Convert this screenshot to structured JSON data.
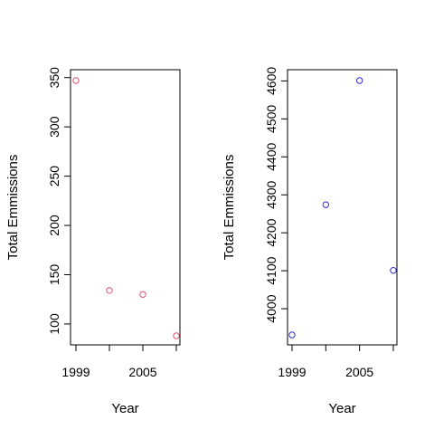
{
  "chart_data": [
    {
      "type": "scatter",
      "title": "",
      "xlabel": "Year",
      "ylabel": "Total Emmissions",
      "x": [
        1999,
        2002,
        2005,
        2008
      ],
      "y": [
        347,
        134,
        130,
        88
      ],
      "xlim": [
        1999,
        2008
      ],
      "ylim": [
        88,
        347
      ],
      "x_ticks": [
        1999,
        2002,
        2005,
        2008
      ],
      "x_tick_labels": [
        "1999",
        "",
        "2005",
        ""
      ],
      "y_ticks": [
        100,
        150,
        200,
        250,
        300,
        350
      ],
      "y_tick_labels": [
        "100",
        "150",
        "200",
        "250",
        "300",
        "350"
      ],
      "grid": false,
      "marker": "open-circle",
      "color": "#df536b"
    },
    {
      "type": "scatter",
      "title": "",
      "xlabel": "Year",
      "ylabel": "Total Emmissions",
      "x": [
        1999,
        2002,
        2005,
        2008
      ],
      "y": [
        3931,
        4274,
        4601,
        4101
      ],
      "xlim": [
        1999,
        2008
      ],
      "ylim": [
        3931,
        4601
      ],
      "x_ticks": [
        1999,
        2002,
        2005,
        2008
      ],
      "x_tick_labels": [
        "1999",
        "",
        "2005",
        ""
      ],
      "y_ticks": [
        4000,
        4100,
        4200,
        4300,
        4400,
        4500,
        4600
      ],
      "y_tick_labels": [
        "4000",
        "4100",
        "4200",
        "4300",
        "4400",
        "4500",
        "4600"
      ],
      "grid": false,
      "marker": "open-circle",
      "color": "#2b2bd6"
    }
  ]
}
